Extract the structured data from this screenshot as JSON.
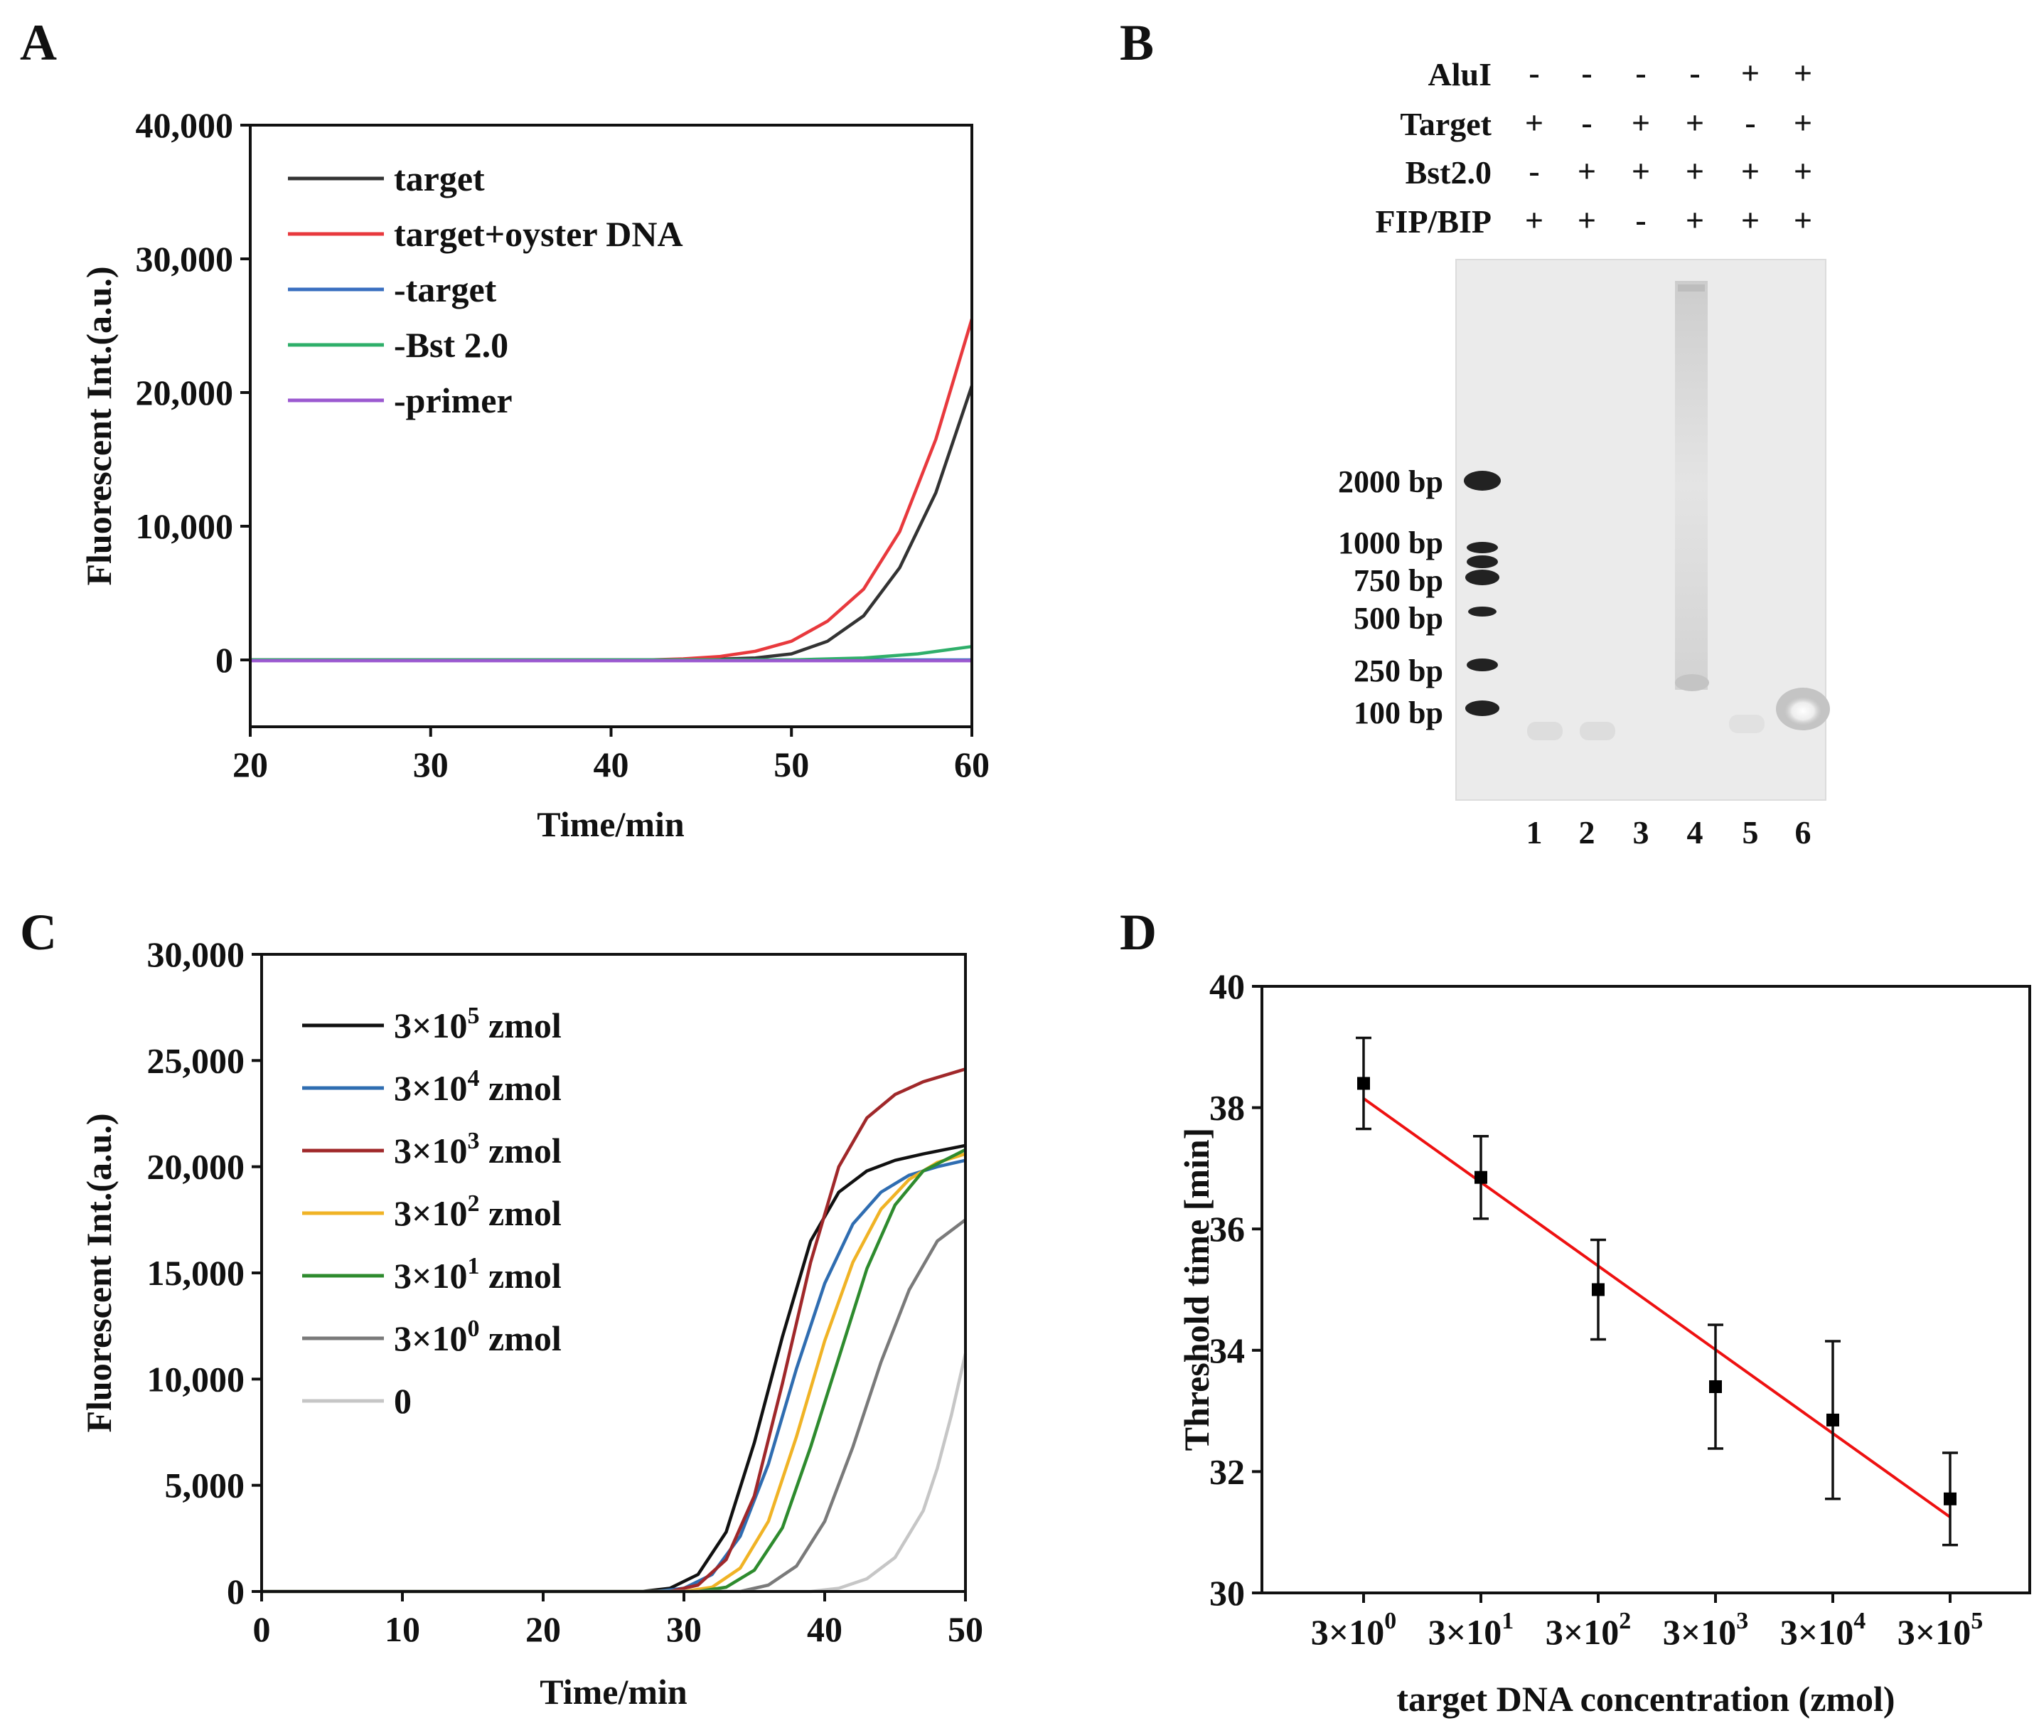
{
  "panels": {
    "A": {
      "label": "A"
    },
    "B": {
      "label": "B"
    },
    "C": {
      "label": "C"
    },
    "D": {
      "label": "D"
    }
  },
  "chart_data": [
    {
      "id": "A",
      "type": "line",
      "xlabel": "Time/min",
      "ylabel": "Fluorescent Int.(a.u.)",
      "xlim": [
        20,
        60
      ],
      "ylim": [
        -5000,
        40000
      ],
      "xticks": [
        20,
        30,
        40,
        50,
        60
      ],
      "xtick_labels": [
        "20",
        "30",
        "40",
        "50",
        "60"
      ],
      "yticks": [
        0,
        10000,
        20000,
        30000,
        40000
      ],
      "ytick_labels": [
        "0",
        "10,000",
        "20,000",
        "30,000",
        "40,000"
      ],
      "legend_position": "top-left",
      "series": [
        {
          "name": "target",
          "color": "#333333",
          "x": [
            20,
            44,
            46,
            48,
            50,
            52,
            54,
            56,
            58,
            60
          ],
          "values": [
            0,
            0,
            60,
            150,
            450,
            1400,
            3300,
            6900,
            12500,
            20500
          ]
        },
        {
          "name": "target+oyster DNA",
          "color": "#e8393d",
          "x": [
            20,
            42,
            44,
            46,
            48,
            50,
            52,
            54,
            56,
            58,
            60
          ],
          "values": [
            0,
            0,
            80,
            250,
            650,
            1400,
            2900,
            5300,
            9600,
            16500,
            25500
          ]
        },
        {
          "name": "-target",
          "color": "#3a6fc0",
          "x": [
            20,
            60
          ],
          "values": [
            0,
            0
          ]
        },
        {
          "name": "-Bst 2.0",
          "color": "#2faf6a",
          "x": [
            20,
            50,
            54,
            57,
            60
          ],
          "values": [
            0,
            0,
            150,
            450,
            1000
          ]
        },
        {
          "name": "-primer",
          "color": "#9b59d0",
          "x": [
            20,
            60
          ],
          "values": [
            -60,
            -60
          ]
        }
      ]
    },
    {
      "id": "C",
      "type": "line",
      "xlabel": "Time/min",
      "ylabel": "Fluorescent Int.(a.u.)",
      "xlim": [
        0,
        50
      ],
      "ylim": [
        0,
        30000
      ],
      "xticks": [
        0,
        10,
        20,
        30,
        40,
        50
      ],
      "xtick_labels": [
        "0",
        "10",
        "20",
        "30",
        "40",
        "50"
      ],
      "yticks": [
        0,
        5000,
        10000,
        15000,
        20000,
        25000,
        30000
      ],
      "ytick_labels": [
        "0",
        "5,000",
        "10,000",
        "15,000",
        "20,000",
        "25,000",
        "30,000"
      ],
      "legend_position": "top-left",
      "series": [
        {
          "name": "3×10⁵ zmol",
          "color": "#111111",
          "x": [
            0,
            27,
            29,
            31,
            33,
            35,
            37,
            39,
            41,
            43,
            45,
            47,
            50
          ],
          "values": [
            0,
            0,
            150,
            800,
            2800,
            7000,
            12000,
            16500,
            18800,
            19800,
            20300,
            20600,
            21000
          ]
        },
        {
          "name": "3×10⁴ zmol",
          "color": "#2f6db1",
          "x": [
            0,
            28,
            30,
            32,
            34,
            36,
            38,
            40,
            42,
            44,
            46,
            48,
            50
          ],
          "values": [
            0,
            0,
            150,
            800,
            2600,
            6000,
            10500,
            14500,
            17300,
            18800,
            19600,
            20000,
            20300
          ]
        },
        {
          "name": "3×10³ zmol",
          "color": "#a0282a",
          "x": [
            0,
            29,
            31,
            33,
            35,
            37,
            39,
            41,
            43,
            45,
            47,
            50
          ],
          "values": [
            0,
            0,
            300,
            1500,
            4500,
            9800,
            15500,
            20000,
            22300,
            23400,
            24000,
            24600
          ]
        },
        {
          "name": "3×10² zmol",
          "color": "#f0b325",
          "x": [
            0,
            30,
            32,
            34,
            36,
            38,
            40,
            42,
            44,
            46,
            48,
            50
          ],
          "values": [
            0,
            0,
            200,
            1100,
            3300,
            7300,
            11800,
            15500,
            18000,
            19400,
            20200,
            20600
          ]
        },
        {
          "name": "3×10¹ zmol",
          "color": "#2e8b2e",
          "x": [
            0,
            31,
            33,
            35,
            37,
            39,
            41,
            43,
            45,
            47,
            50
          ],
          "values": [
            0,
            0,
            200,
            1000,
            3000,
            6800,
            11000,
            15200,
            18200,
            19800,
            20800
          ]
        },
        {
          "name": "3×10⁰ zmol",
          "color": "#7a7a7a",
          "x": [
            0,
            34,
            36,
            38,
            40,
            42,
            44,
            46,
            48,
            50
          ],
          "values": [
            0,
            0,
            300,
            1200,
            3300,
            6800,
            10800,
            14200,
            16500,
            17500
          ]
        },
        {
          "name": "0",
          "color": "#c6c6c6",
          "x": [
            0,
            39,
            41,
            43,
            45,
            47,
            48,
            49,
            50
          ],
          "values": [
            0,
            0,
            150,
            600,
            1600,
            3800,
            5800,
            8300,
            11200
          ]
        }
      ]
    },
    {
      "id": "D",
      "type": "scatter",
      "xlabel": "target DNA concentration (zmol)",
      "ylabel": "Threshold time [min]",
      "ylim": [
        30,
        40
      ],
      "yticks": [
        30,
        32,
        34,
        36,
        38,
        40
      ],
      "ytick_labels": [
        "30",
        "32",
        "34",
        "36",
        "38",
        "40"
      ],
      "categories": [
        {
          "base": "3×10",
          "exp": "0"
        },
        {
          "base": "3×10",
          "exp": "1"
        },
        {
          "base": "3×10",
          "exp": "2"
        },
        {
          "base": "3×10",
          "exp": "3"
        },
        {
          "base": "3×10",
          "exp": "4"
        },
        {
          "base": "3×10",
          "exp": "5"
        }
      ],
      "values": [
        38.4,
        36.85,
        35.0,
        33.4,
        32.85,
        31.55
      ],
      "errors": [
        0.75,
        0.68,
        0.82,
        1.02,
        1.3,
        0.76
      ],
      "fit_line": {
        "color": "#ee1111",
        "start": 38.15,
        "end": 31.25
      },
      "marker_color": "#000000"
    }
  ],
  "gel": {
    "rows": [
      {
        "label": "AluI",
        "signs": [
          "-",
          "-",
          "-",
          "-",
          "+",
          "+"
        ]
      },
      {
        "label": "Target",
        "signs": [
          "+",
          "-",
          "+",
          "+",
          "-",
          "+"
        ]
      },
      {
        "label": "Bst2.0",
        "signs": [
          "-",
          "+",
          "+",
          "+",
          "+",
          "+"
        ]
      },
      {
        "label": "FIP/BIP",
        "signs": [
          "+",
          "+",
          "-",
          "+",
          "+",
          "+"
        ]
      }
    ],
    "ladder": [
      "2000 bp",
      "1000 bp",
      "750 bp",
      "500 bp",
      "250 bp",
      "100 bp"
    ],
    "lanes": [
      "1",
      "2",
      "3",
      "4",
      "5",
      "6"
    ]
  }
}
